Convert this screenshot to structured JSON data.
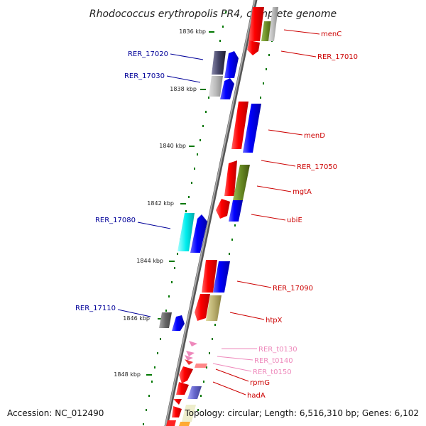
{
  "title": "Rhodococcus erythropolis PR4, complete genome",
  "footer": {
    "accession": "Accession: NC_012490",
    "topology": "Topology: circular; Length: 6,516,310 bp; Genes: 6,102"
  },
  "colors": {
    "forward": "#ff0000",
    "reverse": "#0000ff",
    "axis": "#888888",
    "tick": "#007700",
    "label_forward": "#cc0000",
    "label_reverse": "#000099",
    "label_trna": "#ee88bb"
  },
  "kbp_ticks": [
    {
      "label": "1836 kbp"
    },
    {
      "label": "1838 kbp"
    },
    {
      "label": "1840 kbp"
    },
    {
      "label": "1842 kbp"
    },
    {
      "label": "1844 kbp"
    },
    {
      "label": "1846 kbp"
    },
    {
      "label": "1848 kbp"
    }
  ],
  "gene_labels": [
    {
      "name": "menC"
    },
    {
      "name": "RER_17010"
    },
    {
      "name": "RER_17020"
    },
    {
      "name": "RER_17030"
    },
    {
      "name": "menD"
    },
    {
      "name": "RER_17050"
    },
    {
      "name": "mgtA"
    },
    {
      "name": "ubiE"
    },
    {
      "name": "RER_17080"
    },
    {
      "name": "RER_17090"
    },
    {
      "name": "RER_17110"
    },
    {
      "name": "htpX"
    },
    {
      "name": "RER_t0130"
    },
    {
      "name": "RER_t0140"
    },
    {
      "name": "RER_t0150"
    },
    {
      "name": "rpmG"
    },
    {
      "name": "hadA"
    }
  ]
}
